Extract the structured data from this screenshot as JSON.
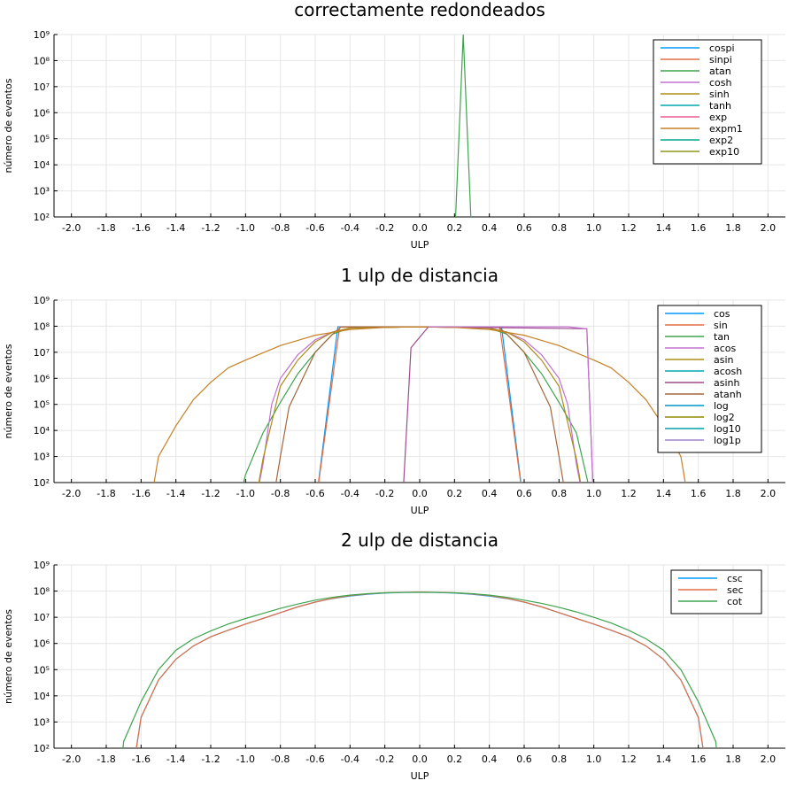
{
  "chart_data": [
    {
      "type": "line",
      "title": "correctamente redondeados",
      "xlabel": "ULP",
      "ylabel": "número de eventos",
      "yscale": "log10",
      "xlim": [
        -2.1,
        2.1
      ],
      "ylim": [
        100,
        1000000000
      ],
      "xticks": [
        "-2.0",
        "-1.8",
        "-1.6",
        "-1.4",
        "-1.2",
        "-1.0",
        "-0.8",
        "-0.6",
        "-0.4",
        "-0.2",
        "0.0",
        "0.2",
        "0.4",
        "0.6",
        "0.8",
        "1.0",
        "1.2",
        "1.4",
        "1.6",
        "1.8",
        "2.0"
      ],
      "yticks": [
        "10²",
        "10³",
        "10⁴",
        "10⁵",
        "10⁶",
        "10⁷",
        "10⁸",
        "10⁹"
      ],
      "grid": true,
      "legend_position": "top-right",
      "series": [
        {
          "name": "cospi",
          "color": "#009af9",
          "x": [],
          "y": []
        },
        {
          "name": "sinpi",
          "color": "#e26f46",
          "x": [],
          "y": []
        },
        {
          "name": "atan",
          "color": "#3da44d",
          "x": [
            0.2,
            0.25,
            0.3
          ],
          "y": [
            10,
            1000000000,
            10
          ]
        },
        {
          "name": "cosh",
          "color": "#c271d2",
          "x": [],
          "y": []
        },
        {
          "name": "sinh",
          "color": "#ac8d18",
          "x": [],
          "y": []
        },
        {
          "name": "tanh",
          "color": "#00a9ad",
          "x": [],
          "y": []
        },
        {
          "name": "exp",
          "color": "#ed5d92",
          "x": [],
          "y": []
        },
        {
          "name": "expm1",
          "color": "#c68125",
          "x": [],
          "y": []
        },
        {
          "name": "exp2",
          "color": "#00a98d",
          "x": [],
          "y": []
        },
        {
          "name": "exp10",
          "color": "#8e971d",
          "x": [],
          "y": []
        }
      ]
    },
    {
      "type": "line",
      "title": "1 ulp de distancia",
      "xlabel": "ULP",
      "ylabel": "número de eventos",
      "yscale": "log10",
      "xlim": [
        -2.1,
        2.1
      ],
      "ylim": [
        100,
        1000000000
      ],
      "xticks": [
        "-2.0",
        "-1.8",
        "-1.6",
        "-1.4",
        "-1.2",
        "-1.0",
        "-0.8",
        "-0.6",
        "-0.4",
        "-0.2",
        "0.0",
        "0.2",
        "0.4",
        "0.6",
        "0.8",
        "1.0",
        "1.2",
        "1.4",
        "1.6",
        "1.8",
        "2.0"
      ],
      "yticks": [
        "10²",
        "10³",
        "10⁴",
        "10⁵",
        "10⁶",
        "10⁷",
        "10⁸",
        "10⁹"
      ],
      "grid": true,
      "legend_position": "top-right",
      "series": [
        {
          "name": "cos",
          "color": "#009af9",
          "x": [
            -0.6,
            -0.47,
            0.47,
            0.6
          ],
          "y": [
            10,
            95000000,
            95000000,
            10
          ]
        },
        {
          "name": "sin",
          "color": "#e26f46",
          "x": [
            -0.6,
            -0.46,
            0.46,
            0.6
          ],
          "y": [
            10,
            93000000,
            93000000,
            10
          ]
        },
        {
          "name": "tan",
          "color": "#3da44d",
          "x": [
            -1.05,
            -1.0,
            -0.9,
            -0.8,
            -0.7,
            -0.6,
            -0.5,
            -0.4,
            0.0,
            0.4,
            0.5,
            0.6,
            0.7,
            0.8,
            0.9,
            0.95,
            1.0
          ],
          "y": [
            10,
            200,
            8000,
            120000,
            1500000,
            10000000,
            50000000,
            85000000,
            95000000,
            85000000,
            50000000,
            10000000,
            1500000,
            120000,
            8000,
            300,
            10
          ]
        },
        {
          "name": "acos",
          "color": "#c271d2",
          "x": [
            -0.95,
            -0.9,
            -0.85,
            -0.8,
            -0.7,
            -0.6,
            -0.5,
            -0.4,
            0.0,
            0.4,
            0.5,
            0.6,
            0.7,
            0.8,
            0.85,
            0.9,
            0.95
          ],
          "y": [
            10,
            500,
            100000,
            1000000,
            8000000,
            30000000,
            60000000,
            85000000,
            95000000,
            85000000,
            60000000,
            30000000,
            8000000,
            1000000,
            100000,
            500,
            10
          ]
        },
        {
          "name": "asin",
          "color": "#ac8d18",
          "x": [
            -0.95,
            -0.9,
            -0.8,
            -0.7,
            -0.6,
            -0.5,
            -0.4,
            0.0,
            0.4,
            0.5,
            0.6,
            0.7,
            0.8,
            0.9,
            0.95
          ],
          "y": [
            10,
            800,
            500000,
            5000000,
            25000000,
            60000000,
            85000000,
            95000000,
            85000000,
            60000000,
            25000000,
            5000000,
            500000,
            800,
            10
          ]
        },
        {
          "name": "acosh",
          "color": "#00a9ad",
          "x": [],
          "y": []
        },
        {
          "name": "asinh",
          "color": "#9f4c8c",
          "x": [
            -0.1,
            -0.05,
            0.05,
            0.96,
            1.0
          ],
          "y": [
            10,
            15000000,
            95000000,
            80000000,
            10
          ]
        },
        {
          "name": "atanh",
          "color": "#a4673c",
          "x": [
            -0.85,
            -0.8,
            -0.75,
            -0.6,
            -0.5,
            -0.45,
            0.0,
            0.45,
            0.5,
            0.6,
            0.75,
            0.8,
            0.85
          ],
          "y": [
            10,
            1000,
            80000,
            10000000,
            50000000,
            95000000,
            95000000,
            95000000,
            50000000,
            10000000,
            80000,
            1000,
            10
          ]
        },
        {
          "name": "log",
          "color": "#0096c8",
          "x": [],
          "y": []
        },
        {
          "name": "log2",
          "color": "#8d8a00",
          "x": [],
          "y": []
        },
        {
          "name": "log10",
          "color": "#00a1a9",
          "x": [],
          "y": []
        },
        {
          "name": "log1p",
          "color": "#9e86cc",
          "x": [],
          "y": []
        },
        {
          "name": "",
          "color": "#c68125",
          "x": [
            -1.55,
            -1.5,
            -1.4,
            -1.3,
            -1.2,
            -1.1,
            -1.0,
            -0.8,
            -0.6,
            -0.4,
            -0.2,
            0.0,
            0.2,
            0.4,
            0.6,
            0.8,
            1.0,
            1.1,
            1.2,
            1.3,
            1.4,
            1.5,
            1.55
          ],
          "y": [
            10,
            1000,
            15000,
            150000,
            700000,
            2500000,
            5000000,
            18000000,
            45000000,
            75000000,
            90000000,
            95000000,
            90000000,
            75000000,
            45000000,
            18000000,
            5000000,
            2500000,
            700000,
            150000,
            15000,
            1000,
            10
          ]
        },
        {
          "name": "",
          "color": "#c271d2",
          "x": [
            0.05,
            0.85,
            0.96,
            1.0
          ],
          "y": [
            95000000,
            95000000,
            80000000,
            10
          ]
        }
      ]
    },
    {
      "type": "line",
      "title": "2 ulp de distancia",
      "xlabel": "ULP",
      "ylabel": "número de eventos",
      "yscale": "log10",
      "xlim": [
        -2.1,
        2.1
      ],
      "ylim": [
        100,
        1000000000
      ],
      "xticks": [
        "-2.0",
        "-1.8",
        "-1.6",
        "-1.4",
        "-1.2",
        "-1.0",
        "-0.8",
        "-0.6",
        "-0.4",
        "-0.2",
        "0.0",
        "0.2",
        "0.4",
        "0.6",
        "0.8",
        "1.0",
        "1.2",
        "1.4",
        "1.6",
        "1.8",
        "2.0"
      ],
      "yticks": [
        "10²",
        "10³",
        "10⁴",
        "10⁵",
        "10⁶",
        "10⁷",
        "10⁸",
        "10⁹"
      ],
      "grid": true,
      "legend_position": "top-right",
      "series": [
        {
          "name": "csc",
          "color": "#009af9",
          "x": [
            -1.65,
            -1.6,
            -1.5,
            -1.4,
            -1.3,
            -1.2,
            -1.1,
            -1.0,
            -0.9,
            -0.8,
            -0.7,
            -0.6,
            -0.5,
            -0.4,
            -0.3,
            -0.2,
            -0.1,
            0.0,
            0.1,
            0.2,
            0.3,
            0.4,
            0.5,
            0.6,
            0.7,
            0.8,
            0.9,
            1.0,
            1.1,
            1.2,
            1.3,
            1.4,
            1.5,
            1.6,
            1.65
          ],
          "y": [
            10,
            1500,
            40000,
            250000,
            800000,
            1800000,
            3200000,
            5500000,
            9000000,
            15000000,
            25000000,
            38000000,
            52000000,
            65000000,
            76000000,
            84000000,
            88000000,
            90000000,
            88000000,
            84000000,
            76000000,
            65000000,
            52000000,
            38000000,
            25000000,
            15000000,
            9000000,
            5500000,
            3200000,
            1800000,
            800000,
            250000,
            40000,
            1500,
            10
          ]
        },
        {
          "name": "sec",
          "color": "#e26f46",
          "x": [
            -1.65,
            -1.6,
            -1.5,
            -1.4,
            -1.3,
            -1.2,
            -1.1,
            -1.0,
            -0.9,
            -0.8,
            -0.7,
            -0.6,
            -0.5,
            -0.4,
            -0.3,
            -0.2,
            -0.1,
            0.0,
            0.1,
            0.2,
            0.3,
            0.4,
            0.5,
            0.6,
            0.7,
            0.8,
            0.9,
            1.0,
            1.1,
            1.2,
            1.3,
            1.4,
            1.5,
            1.6,
            1.65
          ],
          "y": [
            10,
            1500,
            40000,
            250000,
            800000,
            1800000,
            3200000,
            5500000,
            9000000,
            15000000,
            25000000,
            38000000,
            53000000,
            67000000,
            78000000,
            86000000,
            90000000,
            92000000,
            90000000,
            86000000,
            78000000,
            67000000,
            53000000,
            38000000,
            25000000,
            15000000,
            9000000,
            5500000,
            3200000,
            1800000,
            800000,
            250000,
            40000,
            1500,
            10
          ]
        },
        {
          "name": "cot",
          "color": "#3da44d",
          "x": [
            -1.72,
            -1.7,
            -1.6,
            -1.5,
            -1.4,
            -1.3,
            -1.2,
            -1.1,
            -1.0,
            -0.9,
            -0.8,
            -0.7,
            -0.6,
            -0.5,
            -0.4,
            -0.3,
            -0.2,
            -0.1,
            0.0,
            0.1,
            0.2,
            0.3,
            0.4,
            0.5,
            0.6,
            0.7,
            0.8,
            0.9,
            1.0,
            1.1,
            1.2,
            1.3,
            1.4,
            1.5,
            1.6,
            1.7,
            1.72
          ],
          "y": [
            10,
            180,
            6000,
            100000,
            550000,
            1500000,
            3000000,
            5500000,
            9000000,
            14000000,
            22000000,
            32000000,
            45000000,
            58000000,
            70000000,
            80000000,
            86000000,
            89000000,
            90000000,
            89000000,
            86000000,
            80000000,
            70000000,
            58000000,
            45000000,
            34000000,
            24000000,
            16000000,
            10000000,
            6000000,
            3200000,
            1500000,
            550000,
            100000,
            6000,
            180,
            10
          ]
        }
      ]
    }
  ]
}
